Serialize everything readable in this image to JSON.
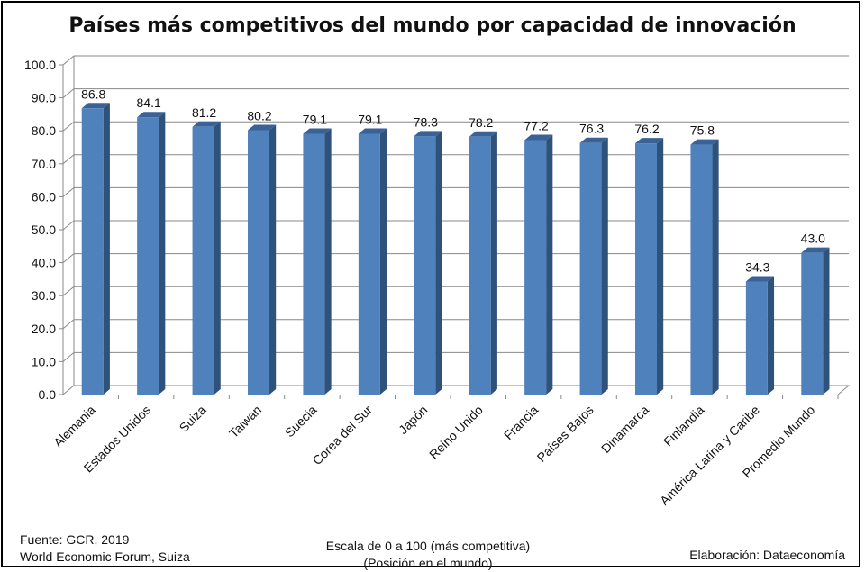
{
  "title": "Países más competitivos del mundo por capacidad de innovación",
  "footer": {
    "source_line1": "Fuente:  GCR, 2019",
    "source_line2": "World Economic Forum, Suiza",
    "scale_line1": "Escala de 0 a 100 (más competitiva)",
    "scale_line2": "(Posición en el mundo)",
    "credit": "Elaboración: Dataeconomía"
  },
  "colors": {
    "bar_front": "#4f81bd",
    "bar_side": "#2f527a",
    "bar_top": "#3b6296",
    "grid": "#888888"
  },
  "chart_data": {
    "type": "bar",
    "title": "Países más competitivos del mundo por capacidad de innovación",
    "categories": [
      "Alemania",
      "Estados Unidos",
      "Suiza",
      "Taiwan",
      "Suecia",
      "Corea del Sur",
      "Japón",
      "Reino Unido",
      "Francia",
      "Países Bajos",
      "Dinamarca",
      "Finlandia",
      "América Latina y Caribe",
      "Promedio Mundo"
    ],
    "values": [
      86.8,
      84.1,
      81.2,
      80.2,
      79.1,
      79.1,
      78.3,
      78.2,
      77.2,
      76.3,
      76.2,
      75.8,
      34.3,
      43.0
    ],
    "data_labels": [
      "86.8",
      "84.1",
      "81.2",
      "80.2",
      "79.1",
      "79.1",
      "78.3",
      "78.2",
      "77.2",
      "76.3",
      "76.2",
      "75.8",
      "34.3",
      "43.0"
    ],
    "y_ticks": [
      "0.0",
      "10.0",
      "20.0",
      "30.0",
      "40.0",
      "50.0",
      "60.0",
      "70.0",
      "80.0",
      "90.0",
      "100.0"
    ],
    "ylim": [
      0,
      100
    ],
    "grid": true,
    "style": "3d-column"
  }
}
